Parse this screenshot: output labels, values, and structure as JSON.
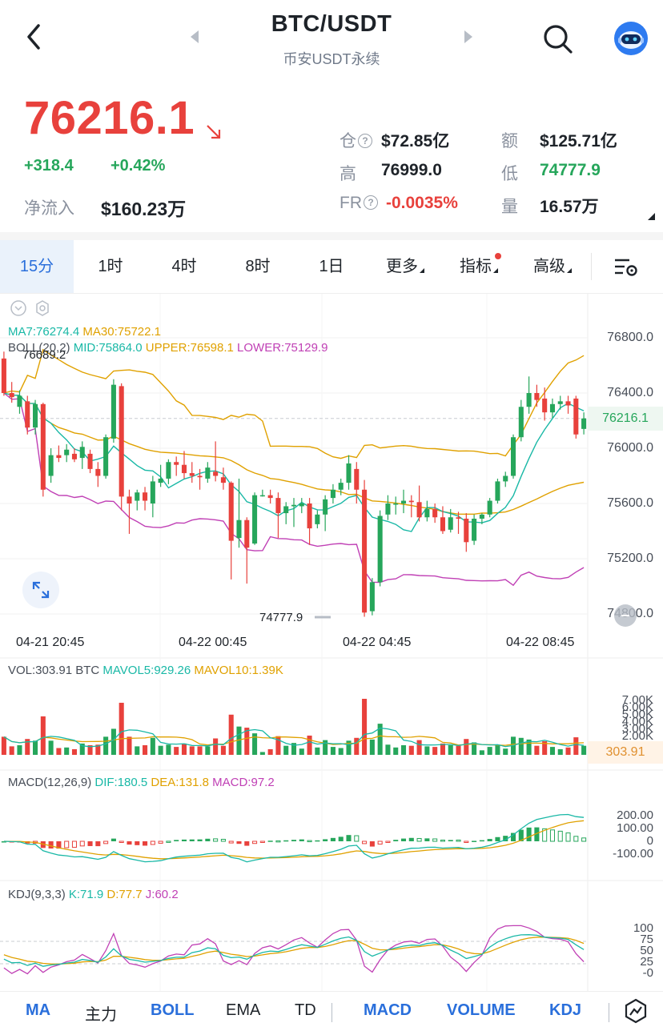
{
  "header": {
    "title": "BTC/USDT",
    "subtitle": "币安USDT永续"
  },
  "price": {
    "last": "76216.1",
    "change": "+318.4",
    "change_pct": "+0.42%",
    "net_inflow_label": "净流入",
    "net_inflow_value": "$160.23万"
  },
  "stats": {
    "oi_label": "仓",
    "oi_value": "$72.85亿",
    "turnover_label": "额",
    "turnover_value": "$125.71亿",
    "high_label": "高",
    "high_value": "76999.0",
    "low_label": "低",
    "low_value": "74777.9",
    "fr_label": "FR",
    "fr_value": "-0.0035%",
    "volume_label": "量",
    "volume_value": "16.57万"
  },
  "timeframes": [
    "15分",
    "1时",
    "4时",
    "8时",
    "1日",
    "更多",
    "指标",
    "高级"
  ],
  "main_chart": {
    "ma_line": {
      "ma7": "MA7:76274.4",
      "ma30": "MA30:75722.1"
    },
    "boll_line": {
      "boll": "BOLL(20,2)",
      "mid": "MID:75864.0",
      "upper": "UPPER:76598.1",
      "lower": "LOWER:75129.9"
    },
    "max_label": "76689.2",
    "min_label": "74777.9",
    "y_ticks": [
      "76800.0",
      "76400.0",
      "76000.0",
      "75600.0",
      "75200.0",
      "74800.0"
    ],
    "last_price_tag": "76216.1",
    "x_ticks": [
      "04-21 20:45",
      "04-22 00:45",
      "04-22 04:45",
      "04-22 08:45"
    ]
  },
  "volume_chart": {
    "vol": "VOL:303.91 BTC",
    "mavol5": "MAVOL5:929.26",
    "mavol10": "MAVOL10:1.39K",
    "y_ticks": [
      "7.00K",
      "6.00K",
      "5.00K",
      "4.00K",
      "3.00K",
      "2.00K"
    ],
    "last_tag": "303.91"
  },
  "macd_chart": {
    "params": "MACD(12,26,9)",
    "dif": "DIF:180.5",
    "dea": "DEA:131.8",
    "macd": "MACD:97.2",
    "y_ticks": [
      "200.00",
      "100.00",
      "0",
      "-100.00"
    ]
  },
  "kdj_chart": {
    "params": "KDJ(9,3,3)",
    "k": "K:71.9",
    "d": "D:77.7",
    "j": "J:60.2",
    "y_ticks": [
      "100",
      "75",
      "50",
      "25",
      "-0"
    ]
  },
  "indicators": [
    "MA",
    "主力",
    "BOLL",
    "EMA",
    "TD",
    "MACD",
    "VOLUME",
    "KDJ"
  ],
  "chart_data": {
    "type": "candlestick",
    "ylim": [
      74700,
      76950
    ],
    "candles": [
      {
        "o": 76650,
        "h": 76700,
        "l": 76380,
        "c": 76400
      },
      {
        "o": 76400,
        "h": 76480,
        "l": 76330,
        "c": 76370
      },
      {
        "o": 76300,
        "h": 76420,
        "l": 76250,
        "c": 76380
      },
      {
        "o": 76340,
        "h": 76380,
        "l": 76100,
        "c": 76150
      },
      {
        "o": 76150,
        "h": 76350,
        "l": 76100,
        "c": 76320
      },
      {
        "o": 76320,
        "h": 76330,
        "l": 75650,
        "c": 75700
      },
      {
        "o": 75800,
        "h": 76000,
        "l": 75750,
        "c": 75950
      },
      {
        "o": 75950,
        "h": 76020,
        "l": 75900,
        "c": 75930
      },
      {
        "o": 75950,
        "h": 76030,
        "l": 75900,
        "c": 75990
      },
      {
        "o": 75960,
        "h": 76000,
        "l": 75900,
        "c": 75920
      },
      {
        "o": 75930,
        "h": 76050,
        "l": 75850,
        "c": 76010
      },
      {
        "o": 75960,
        "h": 75990,
        "l": 75820,
        "c": 75850
      },
      {
        "o": 75850,
        "h": 75900,
        "l": 75720,
        "c": 75800
      },
      {
        "o": 75800,
        "h": 76100,
        "l": 75780,
        "c": 76080
      },
      {
        "o": 76070,
        "h": 76500,
        "l": 76040,
        "c": 76460
      },
      {
        "o": 76450,
        "h": 76470,
        "l": 75550,
        "c": 75650
      },
      {
        "o": 75650,
        "h": 75700,
        "l": 75380,
        "c": 75600
      },
      {
        "o": 75620,
        "h": 75700,
        "l": 75550,
        "c": 75680
      },
      {
        "o": 75680,
        "h": 75720,
        "l": 75550,
        "c": 75620
      },
      {
        "o": 75600,
        "h": 75800,
        "l": 75500,
        "c": 75760
      },
      {
        "o": 75750,
        "h": 75880,
        "l": 75720,
        "c": 75780
      },
      {
        "o": 75780,
        "h": 75920,
        "l": 75740,
        "c": 75900
      },
      {
        "o": 75900,
        "h": 75940,
        "l": 75800,
        "c": 75880
      },
      {
        "o": 75880,
        "h": 75980,
        "l": 75780,
        "c": 75820
      },
      {
        "o": 75820,
        "h": 75900,
        "l": 75750,
        "c": 75800
      },
      {
        "o": 75800,
        "h": 75850,
        "l": 75700,
        "c": 75790
      },
      {
        "o": 75780,
        "h": 75900,
        "l": 75750,
        "c": 75860
      },
      {
        "o": 75830,
        "h": 76050,
        "l": 75760,
        "c": 75800
      },
      {
        "o": 75790,
        "h": 75860,
        "l": 75700,
        "c": 75750
      },
      {
        "o": 75750,
        "h": 75760,
        "l": 75050,
        "c": 75330
      },
      {
        "o": 75350,
        "h": 75780,
        "l": 75280,
        "c": 75480
      },
      {
        "o": 75480,
        "h": 75500,
        "l": 75020,
        "c": 75280
      },
      {
        "o": 75310,
        "h": 75680,
        "l": 75300,
        "c": 75660
      },
      {
        "o": 75660,
        "h": 75700,
        "l": 75650,
        "c": 75660
      },
      {
        "o": 75660,
        "h": 75700,
        "l": 75600,
        "c": 75640
      },
      {
        "o": 75640,
        "h": 75680,
        "l": 75350,
        "c": 75530
      },
      {
        "o": 75530,
        "h": 75610,
        "l": 75450,
        "c": 75580
      },
      {
        "o": 75580,
        "h": 75640,
        "l": 75430,
        "c": 75590
      },
      {
        "o": 75580,
        "h": 75640,
        "l": 75530,
        "c": 75600
      },
      {
        "o": 75600,
        "h": 75640,
        "l": 75300,
        "c": 75420
      },
      {
        "o": 75450,
        "h": 75550,
        "l": 75420,
        "c": 75520
      },
      {
        "o": 75520,
        "h": 75660,
        "l": 75400,
        "c": 75630
      },
      {
        "o": 75640,
        "h": 75740,
        "l": 75600,
        "c": 75700
      },
      {
        "o": 75700,
        "h": 75780,
        "l": 75660,
        "c": 75750
      },
      {
        "o": 75750,
        "h": 75950,
        "l": 75700,
        "c": 75890
      },
      {
        "o": 75850,
        "h": 75900,
        "l": 75600,
        "c": 75700
      },
      {
        "o": 75700,
        "h": 75770,
        "l": 74780,
        "c": 74810
      },
      {
        "o": 74820,
        "h": 75060,
        "l": 74790,
        "c": 75030
      },
      {
        "o": 75030,
        "h": 75550,
        "l": 75000,
        "c": 75510
      },
      {
        "o": 75520,
        "h": 75660,
        "l": 75480,
        "c": 75600
      },
      {
        "o": 75600,
        "h": 75650,
        "l": 75520,
        "c": 75600
      },
      {
        "o": 75600,
        "h": 75700,
        "l": 75530,
        "c": 75620
      },
      {
        "o": 75620,
        "h": 75660,
        "l": 75500,
        "c": 75610
      },
      {
        "o": 75610,
        "h": 75730,
        "l": 75470,
        "c": 75500
      },
      {
        "o": 75500,
        "h": 75620,
        "l": 75470,
        "c": 75560
      },
      {
        "o": 75560,
        "h": 75600,
        "l": 75460,
        "c": 75500
      },
      {
        "o": 75500,
        "h": 75580,
        "l": 75380,
        "c": 75400
      },
      {
        "o": 75410,
        "h": 75560,
        "l": 75390,
        "c": 75500
      },
      {
        "o": 75500,
        "h": 75540,
        "l": 75380,
        "c": 75490
      },
      {
        "o": 75490,
        "h": 75530,
        "l": 75250,
        "c": 75320
      },
      {
        "o": 75330,
        "h": 75520,
        "l": 75300,
        "c": 75490
      },
      {
        "o": 75490,
        "h": 75530,
        "l": 75450,
        "c": 75520
      },
      {
        "o": 75520,
        "h": 75640,
        "l": 75500,
        "c": 75620
      },
      {
        "o": 75620,
        "h": 75780,
        "l": 75600,
        "c": 75760
      },
      {
        "o": 75760,
        "h": 75830,
        "l": 75720,
        "c": 75800
      },
      {
        "o": 75800,
        "h": 76100,
        "l": 75780,
        "c": 76080
      },
      {
        "o": 76080,
        "h": 76350,
        "l": 76050,
        "c": 76300
      },
      {
        "o": 76300,
        "h": 76520,
        "l": 76250,
        "c": 76400
      },
      {
        "o": 76400,
        "h": 76460,
        "l": 76300,
        "c": 76350
      },
      {
        "o": 76360,
        "h": 76440,
        "l": 76200,
        "c": 76260
      },
      {
        "o": 76260,
        "h": 76360,
        "l": 76220,
        "c": 76320
      },
      {
        "o": 76320,
        "h": 76380,
        "l": 76280,
        "c": 76340
      },
      {
        "o": 76340,
        "h": 76380,
        "l": 76250,
        "c": 76310
      },
      {
        "o": 76360,
        "h": 76380,
        "l": 76070,
        "c": 76100
      },
      {
        "o": 76140,
        "h": 76260,
        "l": 76100,
        "c": 76216
      }
    ]
  }
}
